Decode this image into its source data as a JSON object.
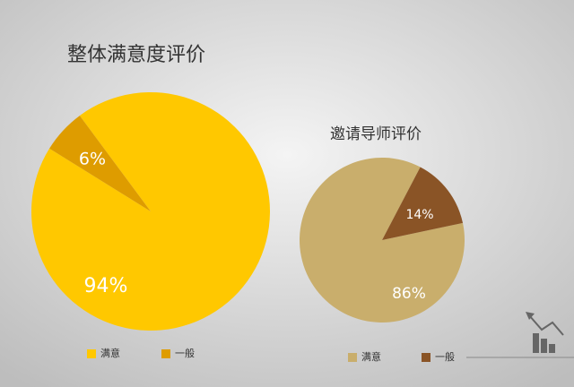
{
  "chart_data": [
    {
      "type": "pie",
      "title": "整体满意度评价",
      "categories": [
        "满意",
        "一般"
      ],
      "values": [
        94,
        6
      ],
      "value_labels": [
        "94%",
        "6%"
      ],
      "colors": [
        "#FFC800",
        "#DE9C00"
      ]
    },
    {
      "type": "pie",
      "title": "邀请导师评价",
      "categories": [
        "满意",
        "一般"
      ],
      "values": [
        86,
        14
      ],
      "value_labels": [
        "86%",
        "14%"
      ],
      "colors": [
        "#C9AE6C",
        "#8A5426"
      ]
    }
  ]
}
